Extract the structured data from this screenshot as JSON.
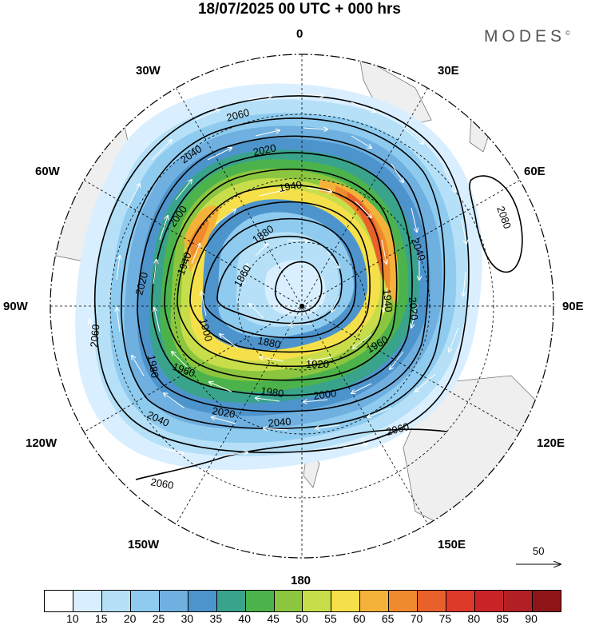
{
  "title": "18/07/2025  00 UTC  + 000 hrs",
  "brand": "MODES",
  "brand_mark": "©",
  "longitude_labels": {
    "n0": "0",
    "n30e": "30E",
    "n60e": "60E",
    "n90e": "90E",
    "n120e": "120E",
    "n150e": "150E",
    "n180": "180",
    "n150w": "150W",
    "n120w": "120W",
    "n90w": "90W",
    "n60w": "60W",
    "n30w": "30W"
  },
  "contour_labels": {
    "c2060a": "2060",
    "c2040a": "2040",
    "c2020a": "2020",
    "c1940": "1940",
    "c1880a": "1880",
    "c1860": "1860",
    "c2000a": "2000",
    "c1940b": "1940",
    "c2020b": "2020",
    "c2060b": "2060",
    "c1980a": "1980",
    "c1900": "1900",
    "c1880b": "1880",
    "c1920": "1920",
    "c1960a": "1960",
    "c1960b": "1960",
    "c1980b": "1980",
    "c2000b": "2000",
    "c2040b": "2040",
    "c2060c": "2060",
    "c2020c": "2020",
    "c2040c": "2040",
    "c2060d": "2060",
    "c1940c": "1940",
    "c2020d": "2020",
    "c2040d": "2040",
    "c2080": "2080"
  },
  "reference_vector": {
    "label": "50"
  },
  "colorbar": {
    "ticks": [
      "10",
      "15",
      "20",
      "25",
      "30",
      "35",
      "40",
      "45",
      "50",
      "55",
      "60",
      "65",
      "70",
      "75",
      "80",
      "85",
      "90"
    ],
    "colors": [
      "#ffffff",
      "#d9efff",
      "#b5e0f7",
      "#8ecbef",
      "#6fb0e0",
      "#4e94cc",
      "#3aa38c",
      "#4cb34c",
      "#8cc63e",
      "#c8dd4a",
      "#f5e04a",
      "#f5b23a",
      "#f08a2e",
      "#e8602a",
      "#dd3a2a",
      "#c92428",
      "#b21f24",
      "#8e1618"
    ]
  },
  "map": {
    "projection": "polar-stereographic-south",
    "field": "wind speed shading, geopotential height contours, wind vectors"
  }
}
